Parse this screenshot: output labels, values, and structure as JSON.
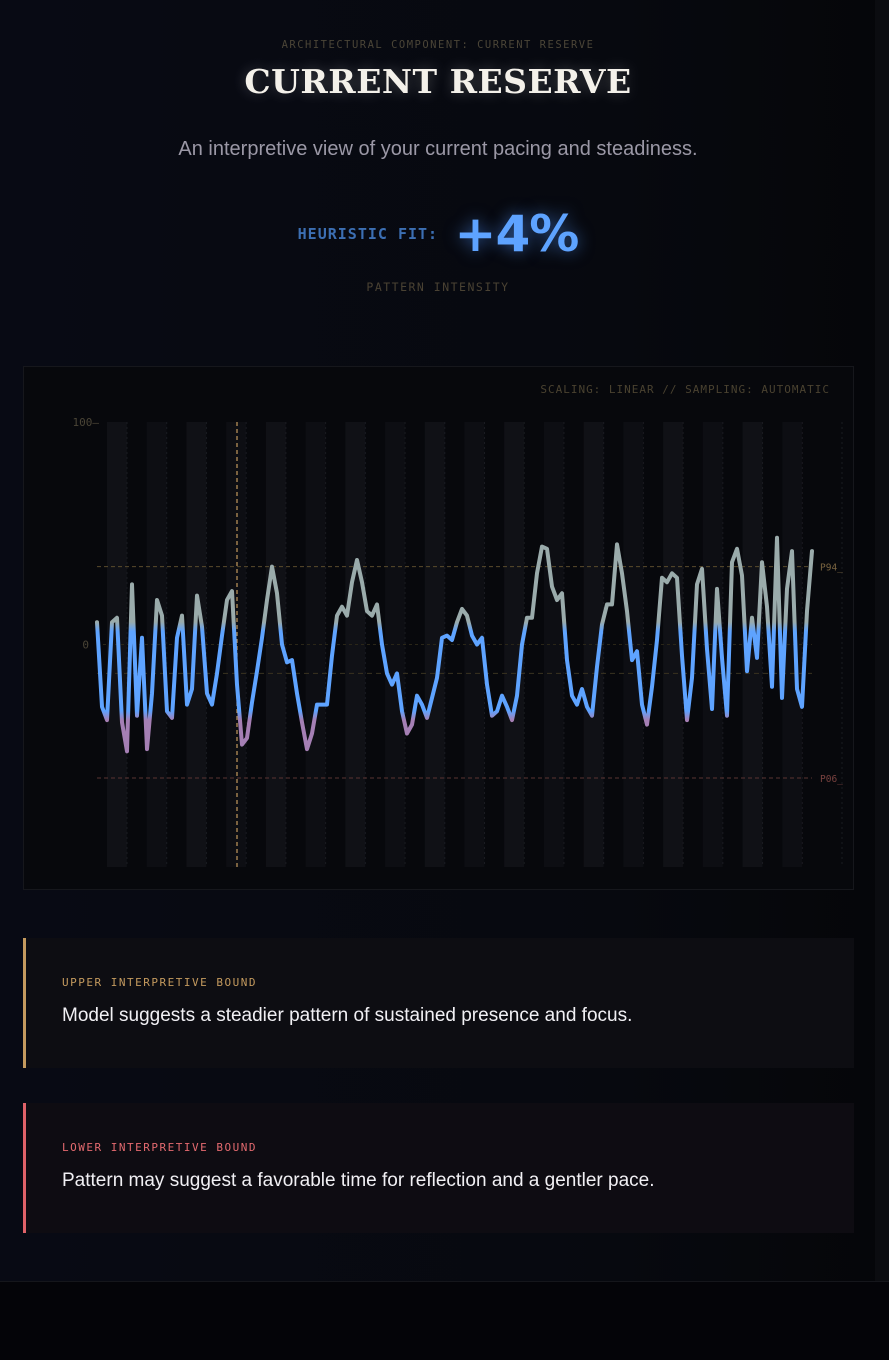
{
  "header": {
    "eyebrow": "ARCHITECTURAL COMPONENT: CURRENT RESERVE",
    "title": "CURRENT RESERVE",
    "subtitle": "An interpretive view of your current pacing and steadiness."
  },
  "metric": {
    "label": "HEURISTIC FIT:",
    "value": "+4%",
    "caption": "PATTERN INTENSITY"
  },
  "colors": {
    "accent_blue": "#5ea3ff",
    "upper_amber": "#c49a5e",
    "lower_red": "#e06269",
    "line_high": "#9aabab",
    "line_mid": "#5ea3ff",
    "line_low": "#a57fb4"
  },
  "chart_data": {
    "type": "line",
    "meta": "SCALING: LINEAR // SAMPLING: AUTOMATIC",
    "ylim": [
      -100,
      100
    ],
    "y_ticks": [
      {
        "value": 100,
        "label": "100"
      },
      {
        "value": 0,
        "label": "0"
      }
    ],
    "reference_lines": [
      {
        "label": "P94",
        "value": 35
      },
      {
        "label": "P06",
        "value": -60
      }
    ],
    "mid_reference": -13,
    "marker_index": 28,
    "series": [
      {
        "values": [
          10,
          -28,
          -34,
          10,
          12,
          -35,
          -48,
          27,
          -32,
          3,
          -47,
          -22,
          20,
          13,
          -30,
          -33,
          3,
          13,
          -27,
          -20,
          22,
          8,
          -22,
          -27,
          -13,
          4,
          20,
          24,
          -18,
          -45,
          -42,
          -26,
          -12,
          3,
          20,
          35,
          23,
          0,
          -8,
          -7,
          -22,
          -35,
          -47,
          -40,
          -27,
          -27,
          -27,
          -5,
          13,
          17,
          13,
          28,
          38,
          28,
          15,
          13,
          18,
          0,
          -13,
          -18,
          -13,
          -30,
          -40,
          -36,
          -23,
          -27,
          -33,
          -24,
          -15,
          3,
          4,
          2,
          10,
          16,
          13,
          4,
          0,
          3,
          -18,
          -32,
          -30,
          -23,
          -28,
          -34,
          -23,
          0,
          12,
          12,
          32,
          44,
          43,
          26,
          20,
          23,
          -7,
          -23,
          -27,
          -20,
          -28,
          -32,
          -10,
          9,
          18,
          18,
          45,
          32,
          15,
          -7,
          -3,
          -27,
          -36,
          -19,
          2,
          30,
          28,
          32,
          30,
          -5,
          -34,
          -15,
          27,
          34,
          -2,
          -29,
          25,
          -6,
          -32,
          37,
          43,
          31,
          -12,
          12,
          -6,
          37,
          17,
          -19,
          48,
          -24,
          25,
          42,
          -20,
          -28,
          15,
          42
        ]
      }
    ]
  },
  "upper_bound": {
    "label": "UPPER INTERPRETIVE BOUND",
    "text": "Model suggests a steadier pattern of sustained presence and focus."
  },
  "lower_bound": {
    "label": "LOWER INTERPRETIVE BOUND",
    "text": "Pattern may suggest a favorable time for reflection and a gentler pace."
  }
}
